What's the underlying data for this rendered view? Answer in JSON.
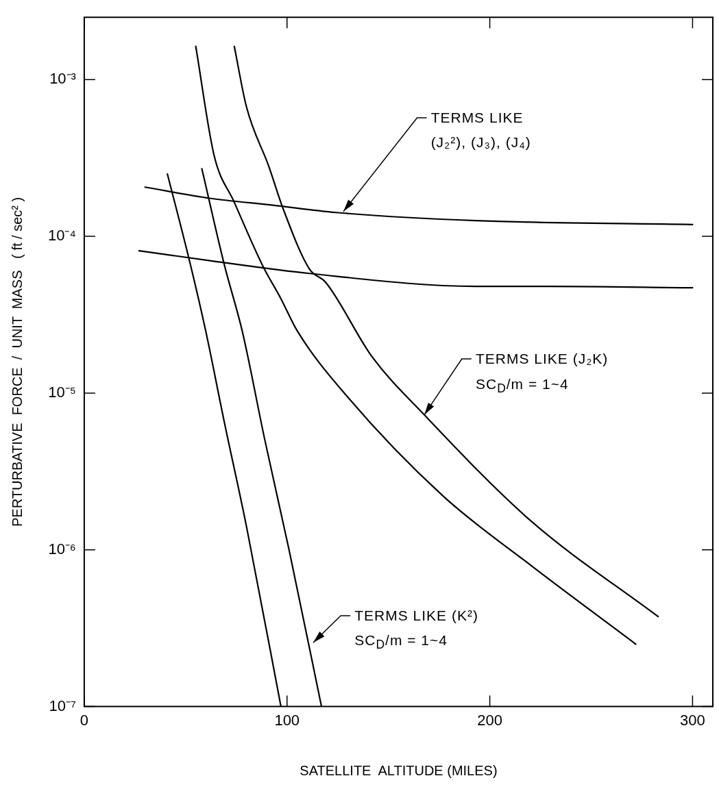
{
  "chart_data": {
    "type": "line",
    "xlabel": "SATELLITE  ALTITUDE (MILES)",
    "ylabel": "PERTURBATIVE  FORCE  /  UNIT  MASS   ( ft / sec² )",
    "xlim": [
      0,
      310
    ],
    "xticks": [
      0,
      100,
      200,
      300
    ],
    "ylim": [
      1e-07,
      0.0025
    ],
    "log": "y",
    "yticks": [
      {
        "value": 1e-07,
        "label": "10⁻⁷"
      },
      {
        "value": 1e-06,
        "label": "10⁻⁶"
      },
      {
        "value": 1e-05,
        "label": "10⁻⁵"
      },
      {
        "value": 0.0001,
        "label": "10⁻⁴"
      },
      {
        "value": 0.001,
        "label": "10⁻³"
      }
    ],
    "grid": false,
    "legend": false,
    "marker": "none",
    "line_style": "solid",
    "series": [
      {
        "color": "#000000",
        "x": [
          27,
          62,
          111,
          193,
          229,
          300
        ],
        "values": [
          8.1e-05,
          7e-05,
          5.8e-05,
          4.8e-05,
          4.8e-05,
          4.7e-05
        ]
      },
      {
        "color": "#000000",
        "x": [
          30,
          62,
          93,
          124,
          193,
          300
        ],
        "values": [
          0.000206,
          0.000175,
          0.000158,
          0.000142,
          0.000126,
          0.000119
        ]
      },
      {
        "color": "#000000",
        "x": [
          55,
          64,
          74,
          88,
          97,
          105,
          130,
          177,
          220,
          272
        ],
        "values": [
          0.00163,
          0.00033,
          0.000165,
          6.5e-05,
          4e-05,
          2.5e-05,
          9.4e-06,
          2.2e-06,
          8e-07,
          2.5e-07
        ]
      },
      {
        "color": "#000000",
        "x": [
          74,
          80,
          91,
          98,
          111,
          119,
          142,
          168,
          220,
          283
        ],
        "values": [
          0.00163,
          0.00067,
          0.00028,
          0.000151,
          6.2e-05,
          5.1e-05,
          1.7e-05,
          7.2e-06,
          1.54e-06,
          3.75e-07
        ]
      },
      {
        "color": "#000000",
        "x": [
          41,
          52,
          60,
          69,
          80,
          97
        ],
        "values": [
          0.00025,
          6.9e-05,
          2.46e-05,
          6.6e-06,
          1.41e-06,
          1e-07
        ]
      },
      {
        "color": "#000000",
        "x": [
          58,
          69,
          78,
          89,
          101,
          117
        ],
        "values": [
          0.00027,
          6.65e-05,
          2.46e-05,
          5.06e-06,
          1e-06,
          1e-07
        ]
      }
    ],
    "annotations": [
      {
        "text": "TERMS LIKE\n(J₂²), (J₃), (J₄)",
        "x": 127,
        "y": 0.00014
      },
      {
        "text": "TERMS LIKE (J₂K)\nSC$_{D}$/m = 1~4",
        "x": 167,
        "y": 7e-06
      },
      {
        "text": "TERMS LIKE (K²)\nSC$_{D}$/m = 1~4",
        "x": 112,
        "y": 2.5e-07
      }
    ]
  }
}
